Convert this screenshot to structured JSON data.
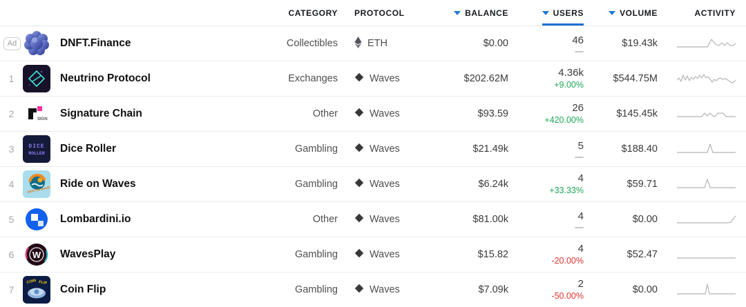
{
  "colors": {
    "accent_blue": "#1e78d6",
    "underline_blue": "#1b6fd2",
    "up_green": "#1da659",
    "down_red": "#e0342f",
    "spark_gray": "#b5b5b5"
  },
  "header": {
    "category": {
      "label": "CATEGORY",
      "sortable": false
    },
    "protocol": {
      "label": "PROTOCOL",
      "sortable": false
    },
    "balance": {
      "label": "BALANCE",
      "sortable": true,
      "active": false
    },
    "users": {
      "label": "USERS",
      "sortable": true,
      "active": true
    },
    "volume": {
      "label": "VOLUME",
      "sortable": true,
      "active": false
    },
    "activity": {
      "label": "ACTIVITY",
      "sortable": false
    }
  },
  "ad_badge_label": "Ad",
  "rows": [
    {
      "rank": "",
      "is_ad": true,
      "icon": "dnft",
      "name": "DNFT.Finance",
      "category": "Collectibles",
      "protocol": "ETH",
      "protocol_icon": "eth",
      "balance": "$0.00",
      "users": "46",
      "change": "",
      "change_dir": "none",
      "volume": "$19.43k",
      "spark": [
        [
          0,
          16
        ],
        [
          44,
          16
        ],
        [
          50,
          5
        ],
        [
          56,
          12
        ],
        [
          61,
          14
        ],
        [
          65,
          10
        ],
        [
          69,
          14
        ],
        [
          73,
          10
        ],
        [
          77,
          14
        ],
        [
          81,
          14
        ],
        [
          85,
          11
        ]
      ]
    },
    {
      "rank": "1",
      "is_ad": false,
      "icon": "neutrino",
      "name": "Neutrino Protocol",
      "category": "Exchanges",
      "protocol": "Waves",
      "protocol_icon": "waves",
      "balance": "$202.62M",
      "users": "4.36k",
      "change": "+9.00%",
      "change_dir": "up",
      "volume": "$544.75M",
      "spark": [
        [
          0,
          13
        ],
        [
          3,
          10
        ],
        [
          6,
          15
        ],
        [
          9,
          6
        ],
        [
          12,
          13
        ],
        [
          15,
          7
        ],
        [
          18,
          14
        ],
        [
          21,
          9
        ],
        [
          24,
          12
        ],
        [
          27,
          8
        ],
        [
          30,
          11
        ],
        [
          33,
          6
        ],
        [
          36,
          10
        ],
        [
          39,
          5
        ],
        [
          42,
          10
        ],
        [
          45,
          8
        ],
        [
          48,
          12
        ],
        [
          51,
          16
        ],
        [
          54,
          12
        ],
        [
          57,
          14
        ],
        [
          60,
          11
        ],
        [
          63,
          10
        ],
        [
          66,
          12
        ],
        [
          69,
          11
        ],
        [
          72,
          12
        ],
        [
          75,
          14
        ],
        [
          78,
          16
        ],
        [
          81,
          17
        ],
        [
          85,
          13
        ]
      ]
    },
    {
      "rank": "2",
      "is_ad": false,
      "icon": "sign",
      "name": "Signature Chain",
      "category": "Other",
      "protocol": "Waves",
      "protocol_icon": "waves",
      "balance": "$93.59",
      "users": "26",
      "change": "+420.00%",
      "change_dir": "up",
      "volume": "$145.45k",
      "spark": [
        [
          0,
          15
        ],
        [
          36,
          15
        ],
        [
          40,
          10
        ],
        [
          44,
          14
        ],
        [
          48,
          10
        ],
        [
          52,
          14
        ],
        [
          55,
          15
        ],
        [
          59,
          10
        ],
        [
          67,
          10
        ],
        [
          71,
          15
        ],
        [
          85,
          15
        ]
      ]
    },
    {
      "rank": "3",
      "is_ad": false,
      "icon": "dice",
      "name": "Dice Roller",
      "category": "Gambling",
      "protocol": "Waves",
      "protocol_icon": "waves",
      "balance": "$21.49k",
      "users": "5",
      "change": "",
      "change_dir": "none",
      "volume": "$188.40",
      "spark": [
        [
          0,
          16
        ],
        [
          44,
          16
        ],
        [
          48,
          4
        ],
        [
          52,
          16
        ],
        [
          85,
          16
        ]
      ]
    },
    {
      "rank": "4",
      "is_ad": false,
      "icon": "ride",
      "name": "Ride on Waves",
      "category": "Gambling",
      "protocol": "Waves",
      "protocol_icon": "waves",
      "balance": "$6.24k",
      "users": "4",
      "change": "+33.33%",
      "change_dir": "up",
      "volume": "$59.71",
      "spark": [
        [
          0,
          16
        ],
        [
          40,
          16
        ],
        [
          44,
          4
        ],
        [
          48,
          16
        ],
        [
          85,
          16
        ]
      ]
    },
    {
      "rank": "5",
      "is_ad": false,
      "icon": "lombardini",
      "name": "Lombardini.io",
      "category": "Other",
      "protocol": "Waves",
      "protocol_icon": "waves",
      "balance": "$81.00k",
      "users": "4",
      "change": "",
      "change_dir": "none",
      "volume": "$0.00",
      "spark": [
        [
          0,
          16
        ],
        [
          74,
          16
        ],
        [
          78,
          15
        ],
        [
          81,
          11
        ],
        [
          85,
          6
        ]
      ]
    },
    {
      "rank": "6",
      "is_ad": false,
      "icon": "wavesplay",
      "name": "WavesPlay",
      "category": "Gambling",
      "protocol": "Waves",
      "protocol_icon": "waves",
      "balance": "$15.82",
      "users": "4",
      "change": "-20.00%",
      "change_dir": "down",
      "volume": "$52.47",
      "spark": [
        [
          0,
          16
        ],
        [
          85,
          16
        ]
      ]
    },
    {
      "rank": "7",
      "is_ad": false,
      "icon": "coinflip",
      "name": "Coin Flip",
      "category": "Gambling",
      "protocol": "Waves",
      "protocol_icon": "waves",
      "balance": "$7.09k",
      "users": "2",
      "change": "-50.00%",
      "change_dir": "down",
      "volume": "$0.00",
      "spark": [
        [
          0,
          17
        ],
        [
          41,
          17
        ],
        [
          44,
          3
        ],
        [
          47,
          17
        ],
        [
          85,
          17
        ]
      ]
    }
  ]
}
